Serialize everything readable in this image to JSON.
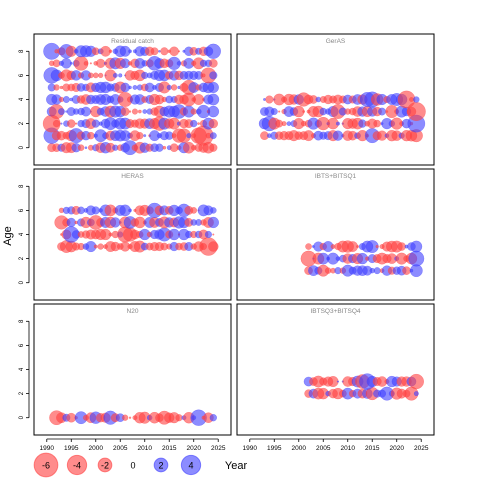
{
  "chart_data": {
    "type": "scatter",
    "subtype": "bubble",
    "ylabel": "Age",
    "xlabel": "Year",
    "x_ticks": [
      1990,
      1995,
      2000,
      2005,
      2010,
      2015,
      2020,
      2025
    ],
    "y_ticks": [
      0,
      2,
      4,
      6,
      8
    ],
    "xlim": [
      1989,
      2026
    ],
    "ylim": [
      -1,
      9
    ],
    "colors": {
      "negative": "#ff4040",
      "positive": "#4040ff"
    },
    "legend": {
      "position": "bottom-left",
      "values": [
        -6,
        -4,
        -2,
        0,
        2,
        4
      ],
      "labels": [
        "-6",
        "-4",
        "-2",
        "0",
        "2",
        "4"
      ]
    },
    "panels": [
      {
        "title": "Residual catch",
        "ages": [
          0,
          1,
          2,
          3,
          4,
          5,
          6,
          7,
          8
        ],
        "years": [
          1991,
          2024
        ],
        "seed": 11,
        "points": [
          {
            "x": 1991,
            "y": 8,
            "v": 3.2
          },
          {
            "x": 1991,
            "y": 6,
            "v": 3.0
          },
          {
            "x": 1991,
            "y": 2,
            "v": -3.5
          },
          {
            "x": 1991,
            "y": 1,
            "v": 3.0
          },
          {
            "x": 2022,
            "y": 1,
            "v": -4.5
          },
          {
            "x": 2021,
            "y": 1,
            "v": -3.0
          },
          {
            "x": 2023,
            "y": 6,
            "v": -2.8
          },
          {
            "x": 2019,
            "y": 5,
            "v": -2.5
          }
        ]
      },
      {
        "title": "GerAS",
        "ages": [
          1,
          2,
          3,
          4
        ],
        "years": [
          1993,
          2024
        ],
        "seed": 23,
        "points": [
          {
            "x": 2024,
            "y": 3,
            "v": -4.0
          },
          {
            "x": 2024,
            "y": 2,
            "v": 3.5
          },
          {
            "x": 2022,
            "y": 4,
            "v": -3.5
          },
          {
            "x": 2015,
            "y": 4,
            "v": 2.8
          }
        ]
      },
      {
        "title": "HERAS",
        "ages": [
          3,
          4,
          5,
          6
        ],
        "years": [
          1993,
          2024
        ],
        "seed": 37,
        "points": [
          {
            "x": 2023,
            "y": 3,
            "v": -3.8
          },
          {
            "x": 1995,
            "y": 4,
            "v": 3.0
          },
          {
            "x": 2006,
            "y": 4,
            "v": -2.8
          },
          {
            "x": 2012,
            "y": 6,
            "v": 2.6
          }
        ]
      },
      {
        "title": "IBTS+BITSQ1",
        "ages": [
          1,
          2,
          3
        ],
        "years": [
          2002,
          2024
        ],
        "seed": 41,
        "points": [
          {
            "x": 2024,
            "y": 2,
            "v": 2.8
          },
          {
            "x": 2002,
            "y": 2,
            "v": -2.8
          }
        ]
      },
      {
        "title": "N20",
        "ages": [
          0
        ],
        "years": [
          1992,
          2024
        ],
        "seed": 53,
        "points": [
          {
            "x": 2021,
            "y": 0,
            "v": 3.0
          },
          {
            "x": 1992,
            "y": 0,
            "v": -2.4
          }
        ]
      },
      {
        "title": "IBTSQ3+BITSQ4",
        "ages": [
          2,
          3
        ],
        "years": [
          2002,
          2024
        ],
        "seed": 67,
        "points": [
          {
            "x": 2014,
            "y": 3,
            "v": 3.0
          },
          {
            "x": 2024,
            "y": 3,
            "v": -2.6
          }
        ]
      }
    ]
  }
}
